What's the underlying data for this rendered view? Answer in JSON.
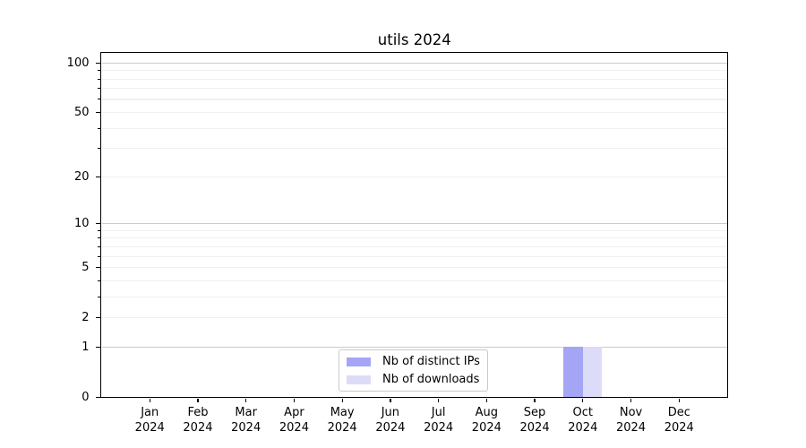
{
  "chart_data": {
    "type": "bar",
    "title": "utils 2024",
    "scale": "log1p",
    "categories": [
      "Jan 2024",
      "Feb 2024",
      "Mar 2024",
      "Apr 2024",
      "May 2024",
      "Jun 2024",
      "Jul 2024",
      "Aug 2024",
      "Sep 2024",
      "Oct 2024",
      "Nov 2024",
      "Dec 2024"
    ],
    "series": [
      {
        "name": "Nb of distinct IPs",
        "color": "#a5a5f5",
        "values": [
          0,
          0,
          0,
          0,
          0,
          0,
          0,
          0,
          0,
          1,
          0,
          0
        ]
      },
      {
        "name": "Nb of downloads",
        "color": "#dcdcf8",
        "values": [
          0,
          0,
          0,
          0,
          0,
          0,
          0,
          0,
          0,
          1,
          0,
          0
        ]
      }
    ],
    "yticks": [
      0,
      1,
      2,
      5,
      10,
      20,
      50,
      100
    ],
    "yticks_minor": [
      3,
      4,
      6,
      7,
      8,
      9,
      30,
      40,
      60,
      70,
      80,
      90
    ],
    "ygrid_major": [
      1,
      10,
      100
    ],
    "ygrid_minor": [
      2,
      3,
      4,
      5,
      6,
      7,
      8,
      9,
      20,
      30,
      40,
      50,
      60,
      70,
      80,
      90
    ],
    "ylim": [
      0,
      115
    ],
    "grid": true,
    "legend_position": "lower center",
    "colors": {
      "axis": "#000000",
      "grid_major": "#cbcbcb",
      "grid_minor": "#f0f0f0",
      "tick_label": "#000000",
      "background": "#ffffff"
    }
  }
}
